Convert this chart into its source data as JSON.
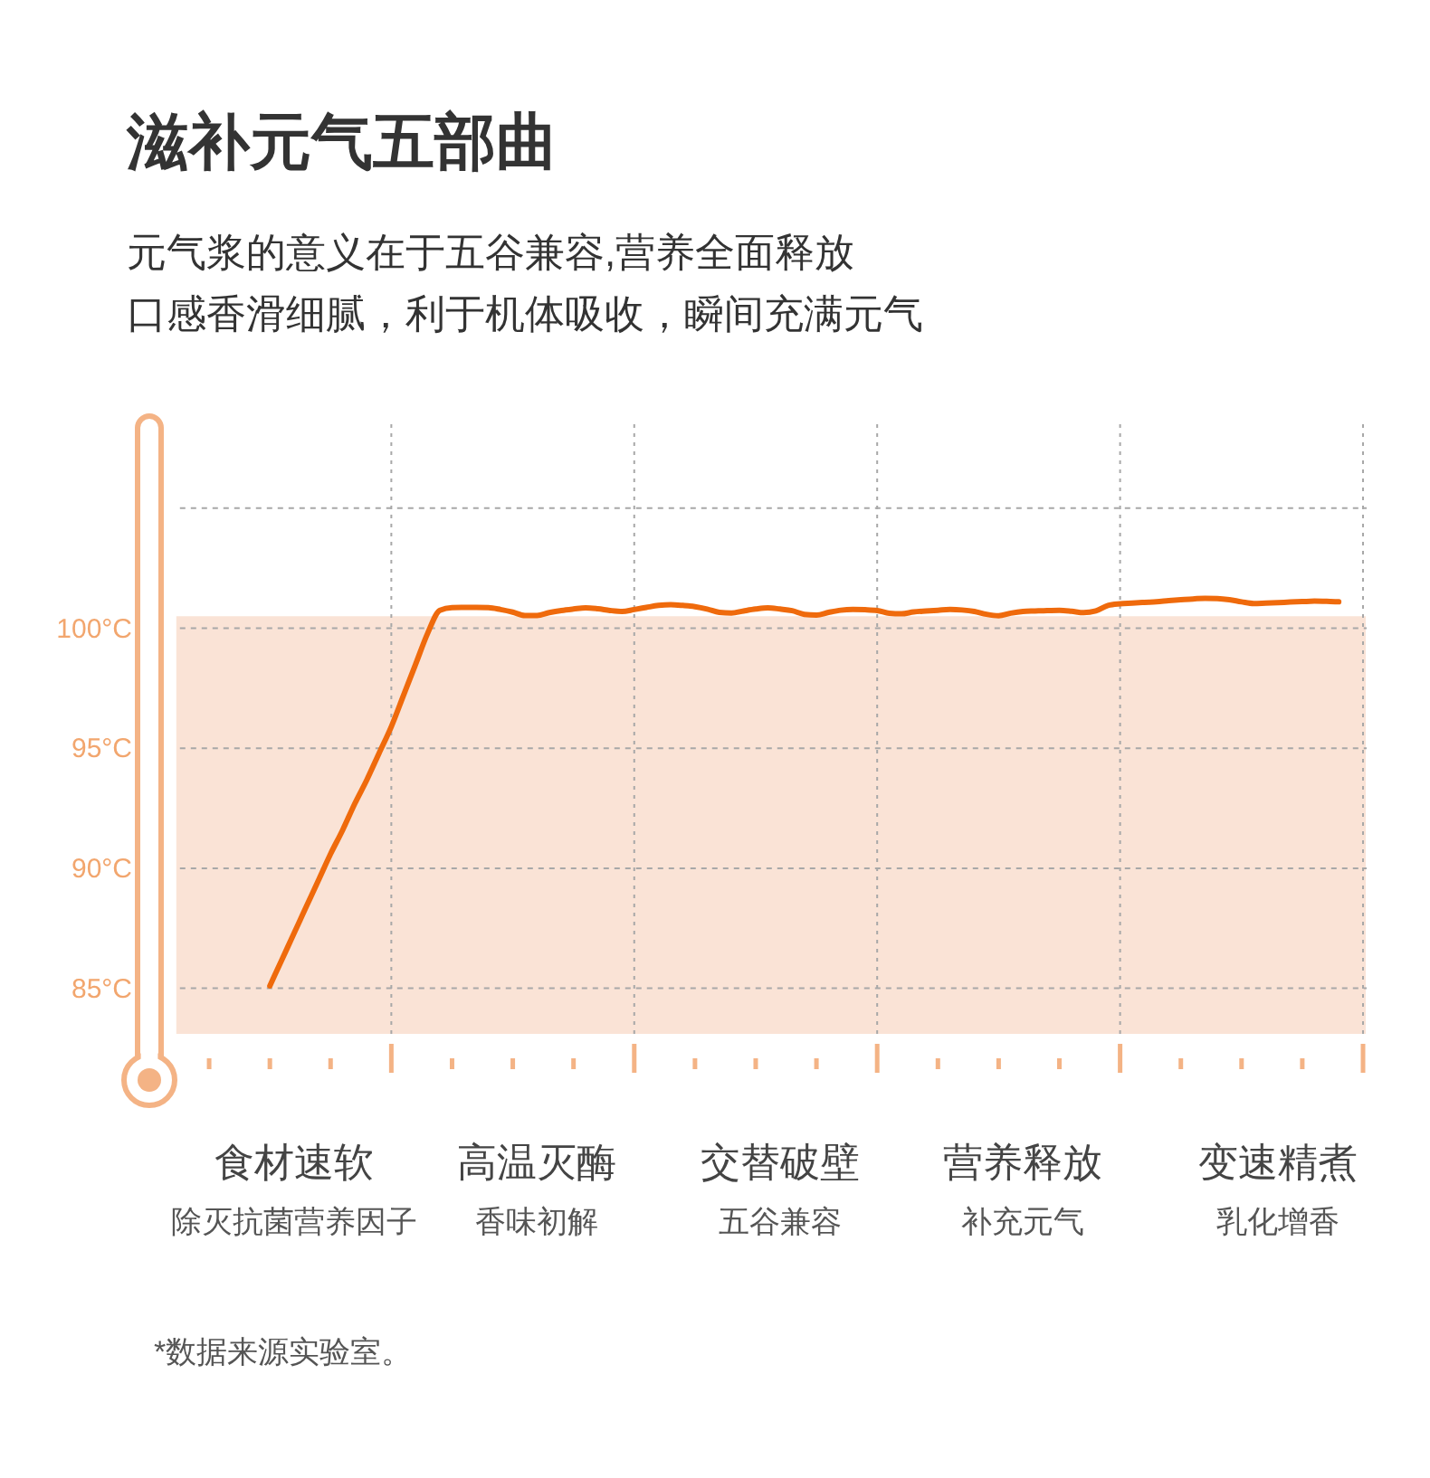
{
  "chart_data": {
    "type": "line",
    "title": "滋补元气五部曲",
    "subtitle": "元气浆的意义在于五谷兼容,营养全面释放",
    "categories": [
      null,
      null,
      null,
      null,
      null,
      null,
      null,
      null,
      null,
      null,
      "食材速软",
      null,
      null,
      null,
      null,
      null,
      null,
      null,
      null,
      null,
      null,
      null,
      null,
      null,
      null,
      null,
      null,
      null,
      null,
      null,
      "高温灭酶",
      null,
      null,
      null,
      null,
      null,
      null,
      null,
      null,
      null,
      null,
      null,
      null,
      null,
      null,
      null,
      null,
      null,
      null,
      null,
      "交替破壁",
      null,
      null,
      null,
      null,
      null,
      null,
      null,
      null,
      null,
      null,
      null,
      null,
      null,
      null,
      null,
      null,
      null,
      null,
      null,
      "营养释放",
      null,
      null,
      null,
      null,
      null,
      null,
      null,
      null,
      null,
      null,
      null,
      null,
      null,
      null,
      null,
      null,
      null,
      null,
      null,
      null,
      "变速精煮",
      null,
      null,
      null,
      null,
      null,
      null,
      null
    ],
    "series": [
      {
        "color": "#ef6a0c",
        "values": [
          null,
          null,
          null,
          null,
          null,
          null,
          null,
          null,
          85.1,
          86.2,
          87.3,
          88.4,
          89.5,
          90.6,
          91.6,
          92.7,
          93.7,
          94.8,
          95.9,
          97.2,
          98.5,
          99.8,
          100.75,
          100.86,
          100.87,
          100.87,
          100.86,
          100.78,
          100.67,
          100.53,
          100.53,
          100.65,
          100.74,
          100.8,
          100.85,
          100.81,
          100.74,
          100.7,
          100.78,
          100.87,
          100.95,
          100.98,
          100.95,
          100.9,
          100.8,
          100.66,
          100.63,
          100.72,
          100.8,
          100.85,
          100.8,
          100.73,
          100.58,
          100.55,
          100.66,
          100.75,
          100.78,
          100.77,
          100.74,
          100.62,
          100.6,
          100.68,
          100.72,
          100.75,
          100.78,
          100.76,
          100.7,
          100.58,
          100.52,
          100.63,
          100.7,
          100.72,
          100.74,
          100.75,
          100.71,
          100.65,
          100.72,
          100.95,
          101.02,
          101.05,
          101.08,
          101.1,
          101.15,
          101.19,
          101.22,
          101.25,
          101.24,
          101.19,
          101.1,
          101.03,
          101.05,
          101.07,
          101.09,
          101.11,
          101.13,
          101.12,
          101.1,
          null,
          null
        ]
      }
    ],
    "ylim": [
      83.1,
      108.5
    ],
    "yticks": [
      {
        "value": 85,
        "label": "85°C"
      },
      {
        "value": 90,
        "label": "90°C"
      },
      {
        "value": 95,
        "label": "95°C"
      },
      {
        "value": 100,
        "label": "100°C"
      },
      {
        "value": 105,
        "label": null
      }
    ],
    "grid": "y",
    "bands": [
      {
        "axis": "y",
        "from": 83.1,
        "to": 100.5,
        "color": "#fae3d6"
      }
    ],
    "annotations": [
      "口感香滑细腻，利于机体吸收，瞬间充满元气",
      "除灭抗菌营养因子",
      "香味初解",
      "五谷兼容",
      "补充元气",
      "乳化增香",
      "*数据来源实验室。"
    ]
  }
}
